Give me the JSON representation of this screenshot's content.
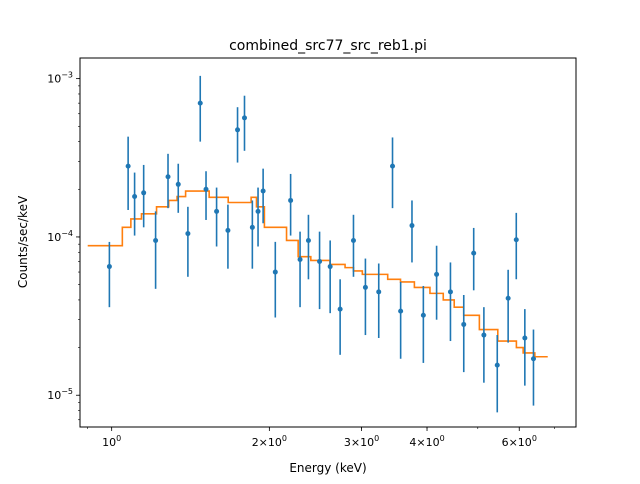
{
  "chart_data": {
    "type": "scatter",
    "title": "combined_src77_src_reb1.pi",
    "xlabel": "Energy (keV)",
    "ylabel": "Counts/sec/keV",
    "xscale": "log",
    "yscale": "log",
    "xlim": [
      0.87,
      7.7
    ],
    "ylim": [
      6.3e-06,
      0.00135
    ],
    "grid": false,
    "x_ticks": [
      {
        "value": 1,
        "label": "10",
        "sup": "0"
      },
      {
        "value": 2,
        "label": "2×10",
        "sup": "0"
      },
      {
        "value": 3,
        "label": "3×10",
        "sup": "0"
      },
      {
        "value": 4,
        "label": "4×10",
        "sup": "0"
      },
      {
        "value": 6,
        "label": "6×10",
        "sup": "0"
      }
    ],
    "y_ticks": [
      {
        "value": 1e-05,
        "label": "10",
        "sup": "−5"
      },
      {
        "value": 0.0001,
        "label": "10",
        "sup": "−4"
      },
      {
        "value": 0.001,
        "label": "10",
        "sup": "−3"
      }
    ],
    "colors": {
      "data": "#1f77b4",
      "model": "#ff7f0e"
    },
    "series": [
      {
        "kind": "data_errorbar",
        "x": [
          0.99,
          1.075,
          1.106,
          1.151,
          1.213,
          1.281,
          1.34,
          1.398,
          1.476,
          1.514,
          1.586,
          1.667,
          1.739,
          1.793,
          1.856,
          1.903,
          1.946,
          2.053,
          2.196,
          2.289,
          2.375,
          2.494,
          2.613,
          2.73,
          2.895,
          3.051,
          3.235,
          3.437,
          3.562,
          3.744,
          3.936,
          4.172,
          4.434,
          4.701,
          4.911,
          5.136,
          5.447,
          5.714,
          5.922,
          6.149,
          6.387
        ],
        "y": [
          6.5e-05,
          0.00028,
          0.00018,
          0.00019,
          9.5e-05,
          0.00024,
          0.000215,
          0.000105,
          0.0007,
          0.0002,
          0.000145,
          0.00011,
          0.000475,
          0.000565,
          0.000115,
          0.000145,
          0.000195,
          6e-05,
          0.00017,
          7.2e-05,
          9.5e-05,
          7e-05,
          6.5e-05,
          3.5e-05,
          9.5e-05,
          4.8e-05,
          4.5e-05,
          0.00028,
          3.4e-05,
          0.000118,
          3.2e-05,
          5.8e-05,
          4.5e-05,
          2.8e-05,
          7.9e-05,
          2.4e-05,
          1.55e-05,
          4.1e-05,
          9.6e-05,
          2.3e-05,
          1.7e-05
        ],
        "ylow": [
          3.6e-05,
          0.000148,
          0.000102,
          0.000115,
          4.7e-05,
          0.000152,
          0.000142,
          5.6e-05,
          0.0004,
          0.000128,
          8.7e-05,
          6.3e-05,
          0.000295,
          0.00035,
          6.3e-05,
          8.7e-05,
          0.000122,
          3.1e-05,
          0.000102,
          3.6e-05,
          5.4e-05,
          3.5e-05,
          3.3e-05,
          1.8e-05,
          5.6e-05,
          2.4e-05,
          2.3e-05,
          0.000152,
          1.7e-05,
          6.9e-05,
          1.6e-05,
          3e-05,
          2.2e-05,
          1.4e-05,
          4.6e-05,
          1.2e-05,
          7.8e-06,
          2.15e-05,
          5.4e-05,
          1.15e-05,
          8.6e-06
        ],
        "yhigh": [
          9.3e-05,
          0.00043,
          0.000255,
          0.000285,
          0.000145,
          0.000335,
          0.00029,
          0.000155,
          0.00104,
          0.00026,
          0.000205,
          0.00016,
          0.00066,
          0.00078,
          0.00017,
          0.000205,
          0.00027,
          9.3e-05,
          0.00025,
          0.000108,
          0.000138,
          0.000108,
          9.5e-05,
          5.4e-05,
          0.000138,
          7.3e-05,
          6.8e-05,
          0.000425,
          5.2e-05,
          0.00017,
          4.9e-05,
          8.8e-05,
          6.9e-05,
          4.3e-05,
          0.000114,
          3.6e-05,
          2.4e-05,
          6.2e-05,
          0.000142,
          3.5e-05,
          2.6e-05
        ]
      },
      {
        "kind": "model_step",
        "x": [
          0.9,
          1.048,
          1.048,
          1.088,
          1.088,
          1.14,
          1.14,
          1.218,
          1.218,
          1.285,
          1.285,
          1.333,
          1.333,
          1.384,
          1.384,
          1.535,
          1.535,
          1.669,
          1.669,
          1.846,
          1.846,
          1.89,
          1.89,
          1.957,
          1.957,
          2.157,
          2.157,
          2.27,
          2.27,
          2.4,
          2.4,
          2.61,
          2.61,
          2.79,
          2.79,
          2.895,
          2.895,
          3.01,
          3.01,
          3.365,
          3.365,
          3.56,
          3.56,
          3.784,
          3.784,
          4.052,
          4.052,
          4.296,
          4.296,
          4.508,
          4.508,
          4.7,
          4.7,
          5.035,
          5.035,
          5.46,
          5.46,
          5.925,
          5.925,
          6.104,
          6.104,
          6.425,
          6.425,
          6.8
        ],
        "y": [
          8.8e-05,
          8.8e-05,
          0.000115,
          0.000115,
          0.00013,
          0.00013,
          0.00014,
          0.00014,
          0.000155,
          0.000155,
          0.00017,
          0.00017,
          0.00018,
          0.00018,
          0.000195,
          0.000195,
          0.000178,
          0.000178,
          0.000165,
          0.000165,
          0.000178,
          0.000178,
          0.000155,
          0.000155,
          0.000115,
          0.000115,
          9.5e-05,
          9.5e-05,
          7.5e-05,
          7.5e-05,
          7.1e-05,
          7.1e-05,
          6.7e-05,
          6.7e-05,
          6.4e-05,
          6.4e-05,
          6.1e-05,
          6.1e-05,
          5.8e-05,
          5.8e-05,
          5.4e-05,
          5.4e-05,
          5.2e-05,
          5.2e-05,
          4.8e-05,
          4.8e-05,
          4.4e-05,
          4.4e-05,
          4e-05,
          4e-05,
          3.6e-05,
          3.6e-05,
          3.2e-05,
          3.2e-05,
          2.6e-05,
          2.6e-05,
          2.2e-05,
          2.2e-05,
          2e-05,
          2e-05,
          1.85e-05,
          1.85e-05,
          1.75e-05,
          1.75e-05
        ]
      }
    ]
  }
}
